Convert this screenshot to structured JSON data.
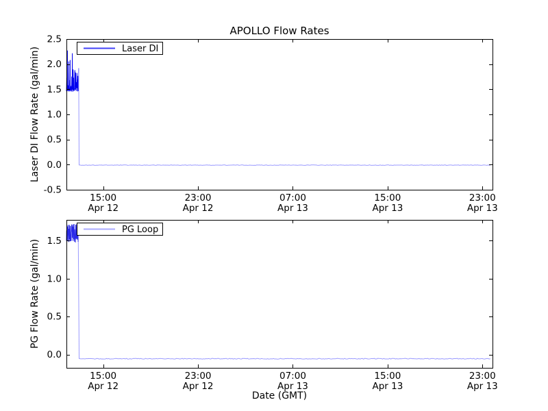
{
  "title": "APOLLO Flow Rates",
  "figure_bg": "#ffffff",
  "axis_color": "#000000",
  "x_axis": {
    "label": "Date (GMT)",
    "t_unit": "hours since Apr 12 00:00 GMT",
    "t_range": [
      11.9,
      47.85
    ],
    "ticks": [
      {
        "t": 15,
        "time": "15:00",
        "date": "Apr 12"
      },
      {
        "t": 23,
        "time": "23:00",
        "date": "Apr 12"
      },
      {
        "t": 31,
        "time": "07:00",
        "date": "Apr 13"
      },
      {
        "t": 39,
        "time": "15:00",
        "date": "Apr 13"
      },
      {
        "t": 47,
        "time": "23:00",
        "date": "Apr 13"
      }
    ]
  },
  "chart_data": [
    {
      "type": "line",
      "name": "laser-di",
      "title": "APOLLO Flow Rates",
      "ylabel": "Laser DI Flow Rate (gal/min)",
      "legend_label": "Laser DI",
      "legend_position": "upper left",
      "line_color": "#0000ee",
      "flat_render_color": "#9a9aff",
      "legend_sample_color": "#4040f8",
      "grid": false,
      "ylim": [
        -0.5,
        2.5
      ],
      "yticks": [
        {
          "value": 2.5,
          "label": "2.5"
        },
        {
          "value": 2.0,
          "label": "2.0"
        },
        {
          "value": 1.5,
          "label": "1.5"
        },
        {
          "value": 1.0,
          "label": "1.0"
        },
        {
          "value": 0.5,
          "label": "0.5"
        },
        {
          "value": 0.0,
          "label": "0.0"
        },
        {
          "value": -0.5,
          "label": "-0.5"
        }
      ],
      "segments": {
        "noise": {
          "t_start": 11.9,
          "t_end": 12.93,
          "base_min": 1.45,
          "base_max": 1.58,
          "spike_prob": 0.3,
          "spike_until_t": 12.4,
          "spike_max_early": 2.3,
          "spike_max_late": 1.92,
          "note": "rapid oscillation with spikes ~1.45-2.3 gal/min just after start"
        },
        "drop_t": 12.95,
        "flat": {
          "value": -0.01,
          "t_end": 47.7,
          "note": "flow off, flatline near 0.0 until end"
        }
      }
    },
    {
      "type": "line",
      "name": "pg-loop",
      "title": "",
      "ylabel": "PG Flow Rate (gal/min)",
      "legend_label": "PG Loop",
      "legend_position": "upper left",
      "line_color": "#2a2ae8",
      "flat_render_color": "#9a9aff",
      "legend_sample_color": "#aaaaff",
      "grid": false,
      "ylim": [
        -0.175,
        1.775
      ],
      "yticks": [
        {
          "value": 1.5,
          "label": "1.5"
        },
        {
          "value": 1.0,
          "label": "1.0"
        },
        {
          "value": 0.5,
          "label": "0.5"
        },
        {
          "value": 0.0,
          "label": "0.0"
        }
      ],
      "segments": {
        "noise": {
          "t_start": 11.9,
          "t_end": 12.9,
          "base_min": 1.47,
          "base_max": 1.73,
          "spike_prob": 0,
          "spike_until_t": 0,
          "spike_max_early": 0,
          "spike_max_late": 0,
          "note": "rapid oscillation ~1.47-1.73 gal/min just after start"
        },
        "drop_t": 12.95,
        "intermediate_value": 0.45,
        "flat": {
          "value": -0.055,
          "t_end": 47.7,
          "note": "flow off, flatline slightly below 0.0 until end"
        }
      }
    }
  ]
}
